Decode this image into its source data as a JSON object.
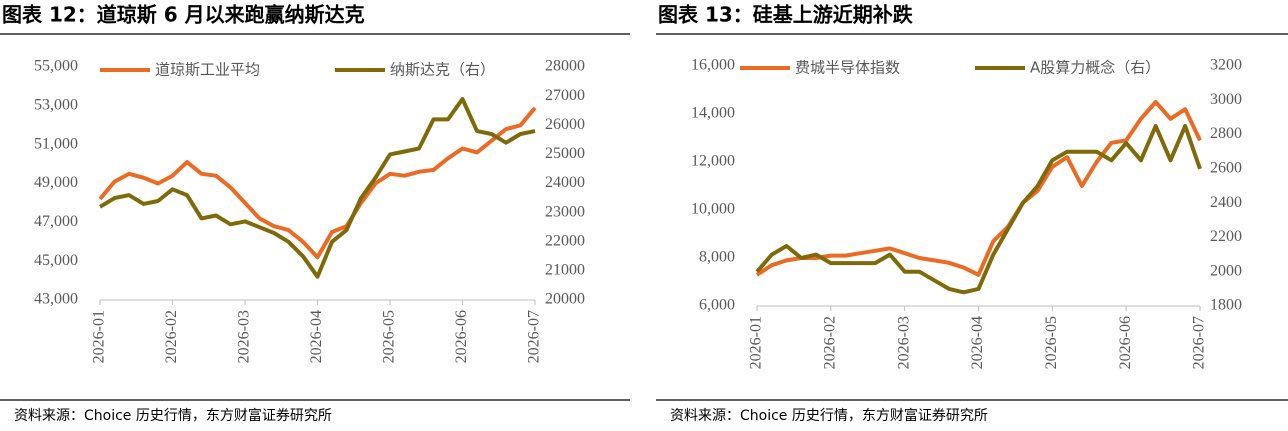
{
  "chart_data": [
    {
      "type": "line",
      "title": "图表 12：道琼斯 6 月以来跑赢纳斯达克",
      "source": "资料来源：Choice 历史行情，东方财富证券研究所",
      "categories": [
        "2026-01",
        null,
        null,
        null,
        null,
        "2026-02",
        null,
        null,
        null,
        null,
        "2026-03",
        null,
        null,
        null,
        null,
        "2026-04",
        null,
        null,
        null,
        null,
        "2026-05",
        null,
        null,
        null,
        null,
        "2026-06",
        null,
        null,
        null,
        null,
        "2026-07"
      ],
      "series": [
        {
          "name": "道琼斯工业平均",
          "color": "#ED6A24",
          "values": [
            48200,
            49100,
            49500,
            49300,
            49000,
            49400,
            50100,
            49500,
            49400,
            48800,
            48000,
            47200,
            46800,
            46600,
            46000,
            45200,
            46500,
            46800,
            48000,
            49000,
            49500,
            49400,
            49600,
            49700,
            50300,
            50800,
            50600,
            51200,
            51800,
            52000,
            52900
          ]
        },
        {
          "name": "纳斯达克（右）",
          "color": "#7F6A0A",
          "axis": "y2",
          "values": [
            23200,
            23500,
            23600,
            23300,
            23400,
            23800,
            23600,
            22800,
            22900,
            22600,
            22700,
            22500,
            22300,
            22000,
            21500,
            20800,
            22000,
            22400,
            23500,
            24200,
            25000,
            25100,
            25200,
            26200,
            26200,
            26900,
            25800,
            25700,
            25400,
            25700,
            25800
          ]
        }
      ],
      "ylim": [
        43000,
        55000
      ],
      "yticks": [
        {
          "value": 43000,
          "label": "43,000"
        },
        {
          "value": 45000,
          "label": "45,000"
        },
        {
          "value": 47000,
          "label": "47,000"
        },
        {
          "value": 49000,
          "label": "49,000"
        },
        {
          "value": 51000,
          "label": "51,000"
        },
        {
          "value": 53000,
          "label": "53,000"
        },
        {
          "value": 55000,
          "label": "55,000"
        }
      ],
      "y2lim": [
        20000,
        28000
      ],
      "y2ticks": [
        20000,
        21000,
        22000,
        23000,
        24000,
        25000,
        26000,
        27000,
        28000
      ],
      "legend": "top"
    },
    {
      "type": "line",
      "title": "图表 13：硅基上游近期补跌",
      "source": "资料来源：Choice 历史行情，东方财富证券研究所",
      "categories": [
        "2026-01",
        null,
        null,
        null,
        null,
        "2026-02",
        null,
        null,
        null,
        null,
        "2026-03",
        null,
        null,
        null,
        null,
        "2026-04",
        null,
        null,
        null,
        null,
        "2026-05",
        null,
        null,
        null,
        null,
        "2026-06",
        null,
        null,
        null,
        null,
        "2026-07"
      ],
      "series": [
        {
          "name": "费城半导体指数",
          "color": "#ED6A24",
          "values": [
            7300,
            7700,
            7900,
            8000,
            8000,
            8100,
            8100,
            8200,
            8300,
            8400,
            8200,
            8000,
            7900,
            7800,
            7600,
            7300,
            8700,
            9300,
            10300,
            10800,
            11800,
            12200,
            11000,
            12000,
            12800,
            12900,
            13800,
            14500,
            13800,
            14200,
            12900
          ]
        },
        {
          "name": "A股算力概念（右）",
          "color": "#7F6A0A",
          "axis": "y2",
          "values": [
            2000,
            2100,
            2150,
            2080,
            2100,
            2050,
            2050,
            2050,
            2050,
            2100,
            2000,
            2000,
            1950,
            1900,
            1880,
            1900,
            2100,
            2250,
            2400,
            2500,
            2650,
            2700,
            2700,
            2700,
            2650,
            2750,
            2650,
            2850,
            2650,
            2850,
            2600
          ]
        }
      ],
      "ylim": [
        6000,
        16000
      ],
      "yticks": [
        {
          "value": 6000,
          "label": "6,000"
        },
        {
          "value": 8000,
          "label": "8,000"
        },
        {
          "value": 10000,
          "label": "10,000"
        },
        {
          "value": 12000,
          "label": "12,000"
        },
        {
          "value": 14000,
          "label": "14,000"
        },
        {
          "value": 16000,
          "label": "16,000"
        }
      ],
      "y2lim": [
        1800,
        3200
      ],
      "y2ticks": [
        1800,
        2000,
        2200,
        2400,
        2600,
        2800,
        3000,
        3200
      ],
      "legend": "top"
    }
  ]
}
